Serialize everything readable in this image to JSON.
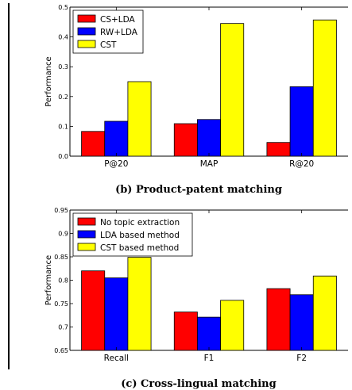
{
  "chart_data": [
    {
      "type": "bar",
      "caption": "(b) Product-patent matching",
      "ylabel": "Performance",
      "ylim": [
        0,
        0.5
      ],
      "yticks": [
        "0.0",
        "0.1",
        "0.2",
        "0.3",
        "0.4",
        "0.5"
      ],
      "categories": [
        "P@20",
        "MAP",
        "R@20"
      ],
      "legend_position": "top-left",
      "series": [
        {
          "name": "CS+LDA",
          "color": "#ff0000",
          "values": [
            0.083,
            0.109,
            0.046
          ]
        },
        {
          "name": "RW+LDA",
          "color": "#0000ff",
          "values": [
            0.117,
            0.123,
            0.233
          ]
        },
        {
          "name": "CST",
          "color": "#ffff00",
          "values": [
            0.25,
            0.445,
            0.457
          ]
        }
      ]
    },
    {
      "type": "bar",
      "caption": "(c) Cross-lingual matching",
      "ylabel": "Performance",
      "ylim": [
        0.65,
        0.95
      ],
      "yticks": [
        "0.65",
        "0.7",
        "0.75",
        "0.8",
        "0.85",
        "0.9",
        "0.95"
      ],
      "categories": [
        "Recall",
        "F1",
        "F2"
      ],
      "legend_position": "top-left",
      "series": [
        {
          "name": "No topic extraction",
          "color": "#ff0000",
          "values": [
            0.82,
            0.732,
            0.782
          ]
        },
        {
          "name": "LDA based method",
          "color": "#0000ff",
          "values": [
            0.805,
            0.721,
            0.769
          ]
        },
        {
          "name": "CST based method",
          "color": "#ffff00",
          "values": [
            0.849,
            0.757,
            0.809
          ]
        }
      ]
    }
  ]
}
